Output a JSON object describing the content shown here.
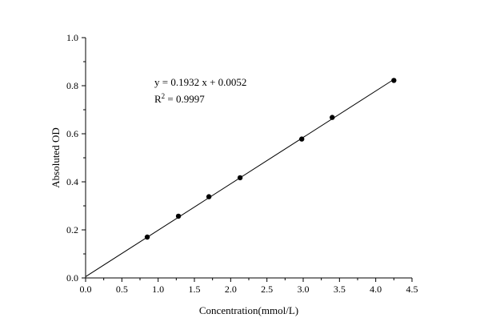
{
  "chart_data": {
    "type": "scatter",
    "xlabel": "Concentration(mmol/L)",
    "ylabel": "Absoluted OD",
    "xlim": [
      0,
      4.5
    ],
    "ylim": [
      0,
      1.0
    ],
    "xticks": [
      "0.0",
      "0.5",
      "1.0",
      "1.5",
      "2.0",
      "2.5",
      "3.0",
      "3.5",
      "4.0",
      "4.5"
    ],
    "yticks": [
      "0.0",
      "0.2",
      "0.4",
      "0.6",
      "0.8",
      "1.0"
    ],
    "grid": false,
    "series": [
      {
        "x": [
          0.85,
          1.28,
          1.7,
          2.13,
          2.98,
          3.4,
          4.25
        ],
        "y": [
          0.17,
          0.257,
          0.338,
          0.417,
          0.578,
          0.668,
          0.822
        ]
      }
    ],
    "fit": {
      "slope": 0.1932,
      "intercept": 0.0052,
      "x_range": [
        0,
        4.25
      ]
    },
    "annotations": {
      "equation": "y = 0.1932 x + 0.0052",
      "r2_prefix": "R",
      "r2_sup": "2",
      "r2_value": " = 0.9997"
    }
  }
}
